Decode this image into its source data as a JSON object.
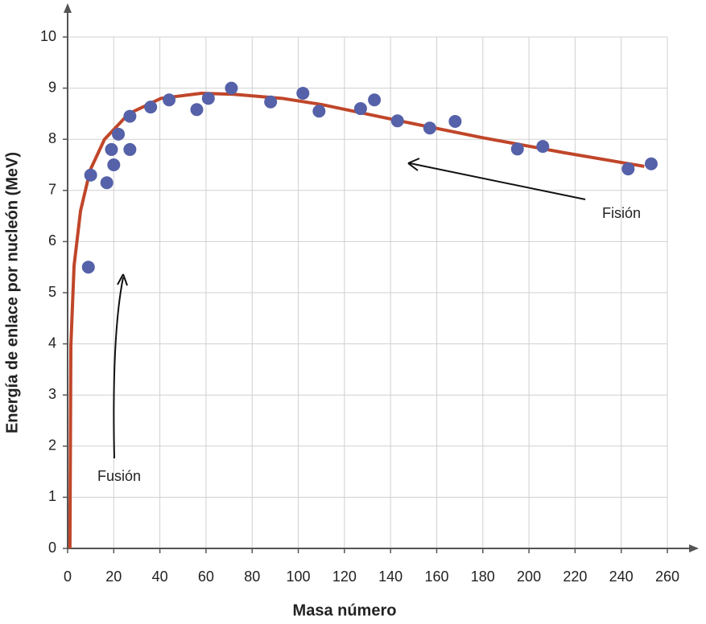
{
  "chart_data": {
    "type": "scatter",
    "xlabel": "Masa número",
    "ylabel": "Energía de enlace por nucleón (MeV)",
    "xlim": [
      0,
      260
    ],
    "ylim": [
      0,
      10
    ],
    "xticks": [
      0,
      20,
      40,
      60,
      80,
      100,
      120,
      140,
      160,
      180,
      200,
      220,
      240,
      260
    ],
    "yticks": [
      0,
      1,
      2,
      3,
      4,
      5,
      6,
      7,
      8,
      9,
      10
    ],
    "grid": true,
    "annotations": [
      "Fusión",
      "Fisión"
    ],
    "series": [
      {
        "type": "line",
        "color": "#c0462a",
        "x": [
          1,
          1.4,
          2.8,
          5.6,
          9.8,
          16,
          26.5,
          40.5,
          58,
          72,
          93,
          110,
          145,
          180,
          215,
          250
        ],
        "values": [
          0,
          3.96,
          5.53,
          6.6,
          7.4,
          8.0,
          8.5,
          8.8,
          8.9,
          8.88,
          8.8,
          8.68,
          8.35,
          8.03,
          7.74,
          7.47
        ]
      },
      {
        "type": "scatter",
        "color": "#5561a8",
        "x": [
          9,
          10,
          17,
          19,
          20,
          22,
          27,
          27,
          36,
          44,
          56,
          61,
          71,
          88,
          102,
          109,
          127,
          133,
          143,
          157,
          168,
          195,
          206,
          243,
          253
        ],
        "values": [
          5.5,
          7.3,
          7.15,
          7.8,
          7.5,
          8.1,
          8.45,
          7.8,
          8.63,
          8.77,
          8.58,
          8.8,
          9.0,
          8.73,
          8.9,
          8.55,
          8.6,
          8.77,
          8.36,
          8.22,
          8.35,
          7.81,
          7.86,
          7.42,
          7.52
        ]
      }
    ]
  }
}
